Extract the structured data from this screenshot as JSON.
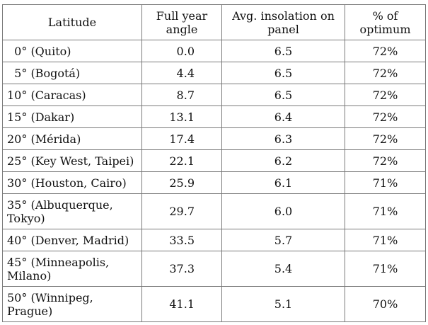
{
  "table": {
    "headers": {
      "latitude": "Latitude",
      "angle": "Full year angle",
      "insolation": "Avg. insolation on panel",
      "optimum": "% of optimum"
    },
    "rows": [
      {
        "latitude": "  0° (Quito)",
        "angle": "0.0",
        "insolation": "6.5",
        "optimum": "72%"
      },
      {
        "latitude": "  5° (Bogotá)",
        "angle": "4.4",
        "insolation": "6.5",
        "optimum": "72%"
      },
      {
        "latitude": "10° (Caracas)",
        "angle": "8.7",
        "insolation": "6.5",
        "optimum": "72%"
      },
      {
        "latitude": "15° (Dakar)",
        "angle": "13.1",
        "insolation": "6.4",
        "optimum": "72%"
      },
      {
        "latitude": "20° (Mérida)",
        "angle": "17.4",
        "insolation": "6.3",
        "optimum": "72%"
      },
      {
        "latitude": "25° (Key West, Taipei)",
        "angle": "22.1",
        "insolation": "6.2",
        "optimum": "72%"
      },
      {
        "latitude": "30° (Houston, Cairo)",
        "angle": "25.9",
        "insolation": "6.1",
        "optimum": "71%"
      },
      {
        "latitude": "35° (Albuquerque, Tokyo)",
        "angle": "29.7",
        "insolation": "6.0",
        "optimum": "71%"
      },
      {
        "latitude": "40° (Denver, Madrid)",
        "angle": "33.5",
        "insolation": "5.7",
        "optimum": "71%"
      },
      {
        "latitude": "45° (Minneapolis, Milano)",
        "angle": "37.3",
        "insolation": "5.4",
        "optimum": "71%"
      },
      {
        "latitude": "50° (Winnipeg, Prague)",
        "angle": "41.1",
        "insolation": "5.1",
        "optimum": "70%"
      }
    ]
  }
}
